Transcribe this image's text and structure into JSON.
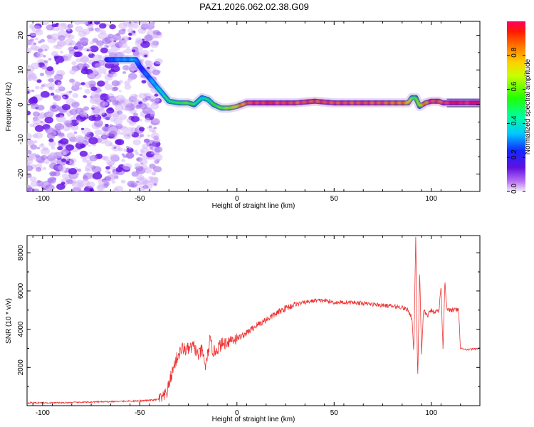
{
  "title": "PAZ1.2026.062.02.38.G09",
  "chart_data": [
    {
      "type": "heatmap",
      "name": "spectrogram",
      "xlabel": "Height of straight line (km)",
      "ylabel": "Frequency (Hz)",
      "xlim": [
        -108,
        125
      ],
      "ylim": [
        -25,
        24
      ],
      "xticks": [
        -100,
        -50,
        0,
        50,
        100
      ],
      "yticks": [
        -20,
        -10,
        0,
        10,
        20
      ],
      "colorbar": {
        "label": "Normalized spectral amplitude",
        "range": [
          0,
          1
        ],
        "ticks": [
          0.0,
          0.2,
          0.4,
          0.6,
          0.8
        ]
      },
      "noise_region_km": [
        -108,
        -40
      ],
      "ridge": {
        "x": [
          -67,
          -60,
          -55,
          -52,
          -50,
          -47,
          -44,
          -41,
          -38,
          -35,
          -30,
          -25,
          -22,
          -18,
          -15,
          -12,
          -8,
          -4,
          0,
          5,
          10,
          20,
          30,
          40,
          50,
          60,
          70,
          80,
          88,
          90,
          92,
          94,
          97,
          100,
          104,
          106,
          108,
          125
        ],
        "freq": [
          13,
          13,
          13,
          13,
          11,
          9,
          7,
          5,
          3,
          1,
          0.5,
          0.5,
          0,
          2,
          1.5,
          0,
          -1,
          -1,
          -0.5,
          0.5,
          0.5,
          0.5,
          0.5,
          1,
          0.5,
          0.5,
          0.5,
          0.5,
          0.5,
          2,
          2,
          -0.5,
          0.5,
          1,
          1,
          0.5,
          0.5,
          0.5
        ],
        "amplitude": [
          0.2,
          0.3,
          0.3,
          0.35,
          0.2,
          0.25,
          0.3,
          0.35,
          0.4,
          0.45,
          0.5,
          0.55,
          0.5,
          0.4,
          0.45,
          0.5,
          0.55,
          0.6,
          0.7,
          0.85,
          0.95,
          0.95,
          0.9,
          0.9,
          0.9,
          0.9,
          0.9,
          0.85,
          0.8,
          0.55,
          0.5,
          0.6,
          0.8,
          0.95,
          0.85,
          0.9,
          1.0,
          1.0
        ]
      }
    },
    {
      "type": "line",
      "name": "snr",
      "xlabel": "Height of straight line (km)",
      "ylabel": "SNR (10 * v/v)",
      "xlim": [
        -108,
        125
      ],
      "ylim": [
        0,
        8900
      ],
      "xticks": [
        -100,
        -50,
        0,
        50,
        100
      ],
      "yticks": [
        2000,
        4000,
        6000,
        8000
      ],
      "color": "#ee3333",
      "x": [
        -108,
        -90,
        -70,
        -50,
        -42,
        -38,
        -36,
        -34,
        -32,
        -30,
        -28,
        -26,
        -24,
        -22,
        -20,
        -18,
        -16,
        -14,
        -12,
        -10,
        -8,
        -6,
        -4,
        -2,
        0,
        5,
        10,
        15,
        20,
        25,
        30,
        35,
        40,
        45,
        50,
        55,
        60,
        65,
        70,
        75,
        80,
        85,
        88,
        90,
        91,
        92,
        93,
        94,
        95,
        96,
        98,
        100,
        102,
        104,
        105,
        106,
        107,
        108,
        110,
        112,
        114,
        115,
        116,
        118,
        120,
        125
      ],
      "y": [
        150,
        150,
        200,
        250,
        300,
        400,
        700,
        1500,
        2200,
        2700,
        3000,
        2900,
        3000,
        3100,
        2600,
        2900,
        2000,
        3400,
        2800,
        3000,
        3200,
        3300,
        3400,
        3500,
        3500,
        3800,
        4200,
        4500,
        4800,
        5100,
        5300,
        5400,
        5500,
        5500,
        5400,
        5400,
        5400,
        5350,
        5300,
        5250,
        5200,
        5150,
        5000,
        4600,
        2800,
        8900,
        1300,
        7000,
        2600,
        5000,
        4700,
        5000,
        4900,
        5000,
        6300,
        3000,
        6600,
        5000,
        5000,
        5000,
        5000,
        2950,
        3000,
        2900,
        2950,
        3000
      ]
    }
  ]
}
